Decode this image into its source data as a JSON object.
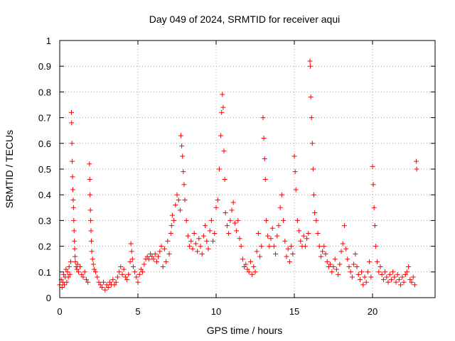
{
  "chart_data": {
    "type": "scatter",
    "title": "Day 049 of 2024, SRMTID for receiver aqui",
    "xlabel": "GPS time / hours",
    "ylabel": "SRMTID / TECUs",
    "xlim": [
      0,
      24
    ],
    "ylim": [
      0,
      1
    ],
    "xticks": [
      0,
      5,
      10,
      15,
      20
    ],
    "yticks": [
      0,
      0.1,
      0.2,
      0.3,
      0.4,
      0.5,
      0.6,
      0.7,
      0.8,
      0.9,
      1
    ],
    "xtick_labels": [
      "0",
      "5",
      "10",
      "15",
      "20"
    ],
    "ytick_labels": [
      "0",
      "0.1",
      "0.2",
      "0.3",
      "0.4",
      "0.5",
      "0.6",
      "0.7",
      "0.8",
      "0.9",
      "1"
    ],
    "grid": true,
    "marker": "plus",
    "color": "#ff0000",
    "series": [
      {
        "name": "SRMTID",
        "points": [
          [
            0.0,
            0.05
          ],
          [
            0.1,
            0.07
          ],
          [
            0.15,
            0.04
          ],
          [
            0.2,
            0.06
          ],
          [
            0.25,
            0.09
          ],
          [
            0.3,
            0.05
          ],
          [
            0.35,
            0.08
          ],
          [
            0.4,
            0.11
          ],
          [
            0.45,
            0.06
          ],
          [
            0.5,
            0.1
          ],
          [
            0.55,
            0.08
          ],
          [
            0.6,
            0.12
          ],
          [
            0.65,
            0.09
          ],
          [
            0.7,
            0.14
          ],
          [
            0.75,
            0.72
          ],
          [
            0.76,
            0.68
          ],
          [
            0.78,
            0.6
          ],
          [
            0.8,
            0.53
          ],
          [
            0.82,
            0.47
          ],
          [
            0.84,
            0.42
          ],
          [
            0.86,
            0.38
          ],
          [
            0.88,
            0.35
          ],
          [
            0.9,
            0.3
          ],
          [
            0.92,
            0.26
          ],
          [
            0.94,
            0.22
          ],
          [
            0.96,
            0.19
          ],
          [
            0.98,
            0.16
          ],
          [
            1.0,
            0.14
          ],
          [
            1.05,
            0.12
          ],
          [
            1.1,
            0.11
          ],
          [
            1.15,
            0.13
          ],
          [
            1.2,
            0.1
          ],
          [
            1.3,
            0.12
          ],
          [
            1.4,
            0.09
          ],
          [
            1.5,
            0.08
          ],
          [
            1.6,
            0.1
          ],
          [
            1.7,
            0.07
          ],
          [
            1.8,
            0.06
          ],
          [
            1.9,
            0.52
          ],
          [
            1.92,
            0.46
          ],
          [
            1.94,
            0.4
          ],
          [
            1.96,
            0.34
          ],
          [
            1.98,
            0.3
          ],
          [
            2.0,
            0.26
          ],
          [
            2.02,
            0.22
          ],
          [
            2.05,
            0.18
          ],
          [
            2.1,
            0.15
          ],
          [
            2.15,
            0.13
          ],
          [
            2.2,
            0.11
          ],
          [
            2.3,
            0.1
          ],
          [
            2.4,
            0.08
          ],
          [
            2.5,
            0.06
          ],
          [
            2.6,
            0.05
          ],
          [
            2.7,
            0.04
          ],
          [
            2.8,
            0.06
          ],
          [
            2.9,
            0.03
          ],
          [
            3.0,
            0.05
          ],
          [
            3.1,
            0.04
          ],
          [
            3.2,
            0.06
          ],
          [
            3.3,
            0.05
          ],
          [
            3.4,
            0.07
          ],
          [
            3.5,
            0.05
          ],
          [
            3.6,
            0.06
          ],
          [
            3.7,
            0.08
          ],
          [
            3.8,
            0.1
          ],
          [
            3.9,
            0.12
          ],
          [
            4.0,
            0.09
          ],
          [
            4.1,
            0.11
          ],
          [
            4.2,
            0.08
          ],
          [
            4.3,
            0.07
          ],
          [
            4.4,
            0.09
          ],
          [
            4.5,
            0.14
          ],
          [
            4.55,
            0.21
          ],
          [
            4.6,
            0.18
          ],
          [
            4.65,
            0.15
          ],
          [
            4.7,
            0.12
          ],
          [
            4.8,
            0.1
          ],
          [
            4.9,
            0.08
          ],
          [
            5.0,
            0.06
          ],
          [
            5.1,
            0.09
          ],
          [
            5.2,
            0.11
          ],
          [
            5.3,
            0.1
          ],
          [
            5.4,
            0.13
          ],
          [
            5.5,
            0.15
          ],
          [
            5.6,
            0.16
          ],
          [
            5.7,
            0.15
          ],
          [
            5.8,
            0.17
          ],
          [
            5.9,
            0.16
          ],
          [
            6.0,
            0.15
          ],
          [
            6.1,
            0.17
          ],
          [
            6.2,
            0.14
          ],
          [
            6.3,
            0.16
          ],
          [
            6.4,
            0.18
          ],
          [
            6.5,
            0.2
          ],
          [
            6.6,
            0.12
          ],
          [
            6.7,
            0.19
          ],
          [
            6.8,
            0.14
          ],
          [
            6.9,
            0.22
          ],
          [
            7.0,
            0.17
          ],
          [
            7.1,
            0.25
          ],
          [
            7.15,
            0.28
          ],
          [
            7.2,
            0.32
          ],
          [
            7.3,
            0.3
          ],
          [
            7.4,
            0.36
          ],
          [
            7.5,
            0.4
          ],
          [
            7.6,
            0.38
          ],
          [
            7.7,
            0.34
          ],
          [
            7.75,
            0.63
          ],
          [
            7.8,
            0.59
          ],
          [
            7.85,
            0.55
          ],
          [
            7.9,
            0.49
          ],
          [
            7.95,
            0.44
          ],
          [
            8.0,
            0.38
          ],
          [
            8.1,
            0.3
          ],
          [
            8.2,
            0.24
          ],
          [
            8.3,
            0.2
          ],
          [
            8.4,
            0.22
          ],
          [
            8.5,
            0.19
          ],
          [
            8.6,
            0.25
          ],
          [
            8.7,
            0.21
          ],
          [
            8.8,
            0.18
          ],
          [
            8.9,
            0.23
          ],
          [
            9.0,
            0.2
          ],
          [
            9.1,
            0.17
          ],
          [
            9.2,
            0.24
          ],
          [
            9.3,
            0.28
          ],
          [
            9.4,
            0.22
          ],
          [
            9.5,
            0.19
          ],
          [
            9.6,
            0.26
          ],
          [
            9.7,
            0.3
          ],
          [
            9.8,
            0.22
          ],
          [
            9.9,
            0.25
          ],
          [
            10.0,
            0.35
          ],
          [
            10.1,
            0.38
          ],
          [
            10.2,
            0.5
          ],
          [
            10.3,
            0.63
          ],
          [
            10.35,
            0.72
          ],
          [
            10.4,
            0.79
          ],
          [
            10.45,
            0.74
          ],
          [
            10.5,
            0.57
          ],
          [
            10.55,
            0.46
          ],
          [
            10.6,
            0.33
          ],
          [
            10.7,
            0.28
          ],
          [
            10.8,
            0.25
          ],
          [
            10.9,
            0.3
          ],
          [
            11.0,
            0.34
          ],
          [
            11.1,
            0.37
          ],
          [
            11.2,
            0.29
          ],
          [
            11.3,
            0.26
          ],
          [
            11.4,
            0.3
          ],
          [
            11.5,
            0.23
          ],
          [
            11.6,
            0.2
          ],
          [
            11.7,
            0.15
          ],
          [
            11.8,
            0.12
          ],
          [
            11.9,
            0.13
          ],
          [
            12.0,
            0.11
          ],
          [
            12.1,
            0.1
          ],
          [
            12.2,
            0.14
          ],
          [
            12.3,
            0.09
          ],
          [
            12.4,
            0.12
          ],
          [
            12.5,
            0.1
          ],
          [
            12.6,
            0.18
          ],
          [
            12.7,
            0.25
          ],
          [
            12.8,
            0.16
          ],
          [
            12.9,
            0.2
          ],
          [
            13.0,
            0.7
          ],
          [
            13.05,
            0.62
          ],
          [
            13.1,
            0.54
          ],
          [
            13.15,
            0.46
          ],
          [
            13.2,
            0.3
          ],
          [
            13.3,
            0.24
          ],
          [
            13.4,
            0.2
          ],
          [
            13.5,
            0.23
          ],
          [
            13.6,
            0.27
          ],
          [
            13.7,
            0.2
          ],
          [
            13.8,
            0.17
          ],
          [
            13.9,
            0.24
          ],
          [
            14.0,
            0.28
          ],
          [
            14.1,
            0.35
          ],
          [
            14.2,
            0.4
          ],
          [
            14.3,
            0.3
          ],
          [
            14.4,
            0.22
          ],
          [
            14.5,
            0.16
          ],
          [
            14.6,
            0.19
          ],
          [
            14.7,
            0.14
          ],
          [
            14.8,
            0.2
          ],
          [
            14.9,
            0.17
          ],
          [
            15.0,
            0.55
          ],
          [
            15.05,
            0.49
          ],
          [
            15.1,
            0.42
          ],
          [
            15.2,
            0.3
          ],
          [
            15.3,
            0.26
          ],
          [
            15.4,
            0.22
          ],
          [
            15.5,
            0.2
          ],
          [
            15.6,
            0.24
          ],
          [
            15.7,
            0.2
          ],
          [
            15.8,
            0.23
          ],
          [
            15.9,
            0.25
          ],
          [
            16.0,
            0.92
          ],
          [
            16.02,
            0.9
          ],
          [
            16.05,
            0.78
          ],
          [
            16.1,
            0.7
          ],
          [
            16.15,
            0.6
          ],
          [
            16.2,
            0.5
          ],
          [
            16.25,
            0.4
          ],
          [
            16.3,
            0.33
          ],
          [
            16.4,
            0.3
          ],
          [
            16.5,
            0.25
          ],
          [
            16.6,
            0.2
          ],
          [
            16.7,
            0.16
          ],
          [
            16.8,
            0.18
          ],
          [
            16.9,
            0.2
          ],
          [
            17.0,
            0.17
          ],
          [
            17.1,
            0.14
          ],
          [
            17.2,
            0.12
          ],
          [
            17.3,
            0.13
          ],
          [
            17.4,
            0.1
          ],
          [
            17.5,
            0.12
          ],
          [
            17.6,
            0.15
          ],
          [
            17.7,
            0.11
          ],
          [
            17.8,
            0.09
          ],
          [
            17.9,
            0.13
          ],
          [
            18.0,
            0.18
          ],
          [
            18.1,
            0.21
          ],
          [
            18.2,
            0.28
          ],
          [
            18.3,
            0.19
          ],
          [
            18.4,
            0.15
          ],
          [
            18.5,
            0.12
          ],
          [
            18.6,
            0.1
          ],
          [
            18.7,
            0.08
          ],
          [
            18.8,
            0.13
          ],
          [
            18.9,
            0.17
          ],
          [
            19.0,
            0.12
          ],
          [
            19.1,
            0.09
          ],
          [
            19.2,
            0.07
          ],
          [
            19.3,
            0.1
          ],
          [
            19.4,
            0.05
          ],
          [
            19.5,
            0.08
          ],
          [
            19.6,
            0.06
          ],
          [
            19.7,
            0.1
          ],
          [
            19.8,
            0.14
          ],
          [
            19.9,
            0.08
          ],
          [
            20.0,
            0.51
          ],
          [
            20.05,
            0.44
          ],
          [
            20.1,
            0.35
          ],
          [
            20.15,
            0.28
          ],
          [
            20.2,
            0.2
          ],
          [
            20.3,
            0.14
          ],
          [
            20.4,
            0.1
          ],
          [
            20.5,
            0.12
          ],
          [
            20.6,
            0.09
          ],
          [
            20.7,
            0.07
          ],
          [
            20.8,
            0.1
          ],
          [
            20.9,
            0.08
          ],
          [
            21.0,
            0.06
          ],
          [
            21.1,
            0.09
          ],
          [
            21.2,
            0.07
          ],
          [
            21.3,
            0.1
          ],
          [
            21.4,
            0.08
          ],
          [
            21.5,
            0.06
          ],
          [
            21.6,
            0.09
          ],
          [
            21.7,
            0.07
          ],
          [
            21.8,
            0.05
          ],
          [
            21.9,
            0.08
          ],
          [
            22.0,
            0.06
          ],
          [
            22.1,
            0.09
          ],
          [
            22.2,
            0.1
          ],
          [
            22.3,
            0.12
          ],
          [
            22.4,
            0.07
          ],
          [
            22.5,
            0.06
          ],
          [
            22.6,
            0.08
          ],
          [
            22.7,
            0.05
          ],
          [
            22.8,
            0.53
          ],
          [
            22.82,
            0.5
          ]
        ]
      }
    ]
  }
}
